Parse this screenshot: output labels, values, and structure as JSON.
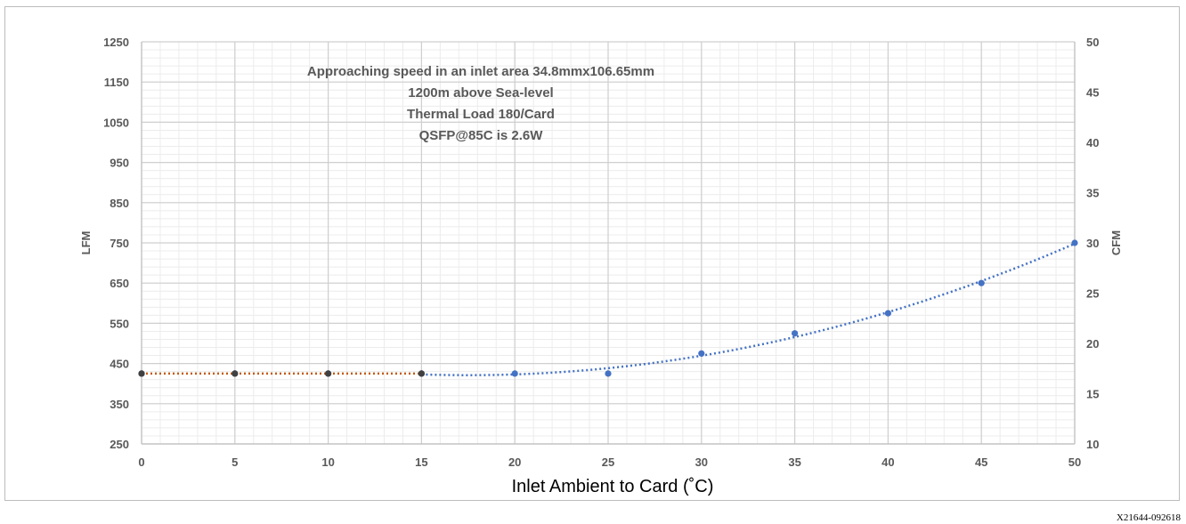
{
  "figure_id": "X21644-092618",
  "chart_data": {
    "type": "line",
    "title": "",
    "xlabel": "Inlet Ambient to Card (˚C)",
    "ylabel": "LFM",
    "y2label": "CFM",
    "xlim": [
      0,
      50
    ],
    "ylim": [
      250,
      1250
    ],
    "y2lim": [
      10,
      50
    ],
    "x_ticks": [
      0,
      5,
      10,
      15,
      20,
      25,
      30,
      35,
      40,
      45,
      50
    ],
    "y_ticks": [
      250,
      350,
      450,
      550,
      650,
      750,
      850,
      950,
      1050,
      1150,
      1250
    ],
    "y2_ticks": [
      10,
      15,
      20,
      25,
      30,
      35,
      40,
      45,
      50
    ],
    "grid": true,
    "annotations": [
      "Approaching speed  in an inlet area  34.8mmx106.65mm",
      "1200m above Sea-level",
      "Thermal Load 180/Card",
      "QSFP@85C is 2.6W"
    ],
    "series": [
      {
        "x": [
          0,
          5,
          10,
          15,
          20,
          25,
          30,
          35,
          40,
          45,
          50
        ],
        "values": [
          425,
          425,
          425,
          425,
          425,
          425,
          475,
          525,
          575,
          650,
          750
        ],
        "color": "#4472c4",
        "trendline_color": "#4472c4",
        "trendline_style": "dotted"
      },
      {
        "x": [
          0,
          5,
          10,
          15
        ],
        "values": [
          425,
          425,
          425,
          425
        ],
        "color": "#404040",
        "trendline_color": "#c55a11",
        "trendline_style": "dotted"
      }
    ]
  }
}
